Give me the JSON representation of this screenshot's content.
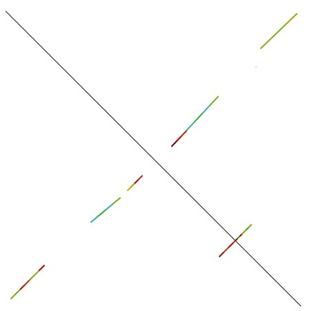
{
  "plot": {
    "background": "#ffffff",
    "diagonal_color": "#111111",
    "segment_palette": [
      "#a0a000",
      "#d0b000",
      "#70b000",
      "#20b020",
      "#20b0b0",
      "#c03000",
      "#b00000",
      "#800000"
    ],
    "segments": [
      {
        "colors": [
          "#a0a000",
          "#70b000",
          "#b00000",
          "#c03000",
          "#70b000",
          "#a0a000",
          "#b00000"
        ]
      },
      {
        "colors": [
          "#20b0b0",
          "#20b020",
          "#20b0b0",
          "#70b000"
        ]
      },
      {
        "colors": [
          "#d0b000",
          "#a0a000",
          "#b00000",
          "#c03000"
        ]
      },
      {
        "colors": [
          "#c03000",
          "#a0a000",
          "#20b0b0",
          "#20b020",
          "#20b0b0",
          "#70b000"
        ]
      },
      {
        "colors": [
          "#800000",
          "#b00000",
          "#c03000"
        ]
      },
      {
        "colors": [
          "#b00000",
          "#c03000",
          "#b00000"
        ]
      },
      {
        "colors": [
          "#c03000",
          "#b00000",
          "#20b020",
          "#b00000",
          "#a0a000",
          "#70b000",
          "#20b020",
          "#a0a000"
        ]
      },
      {
        "colors": [
          "#a0a000",
          "#70b000",
          "#a0a000"
        ]
      }
    ]
  }
}
